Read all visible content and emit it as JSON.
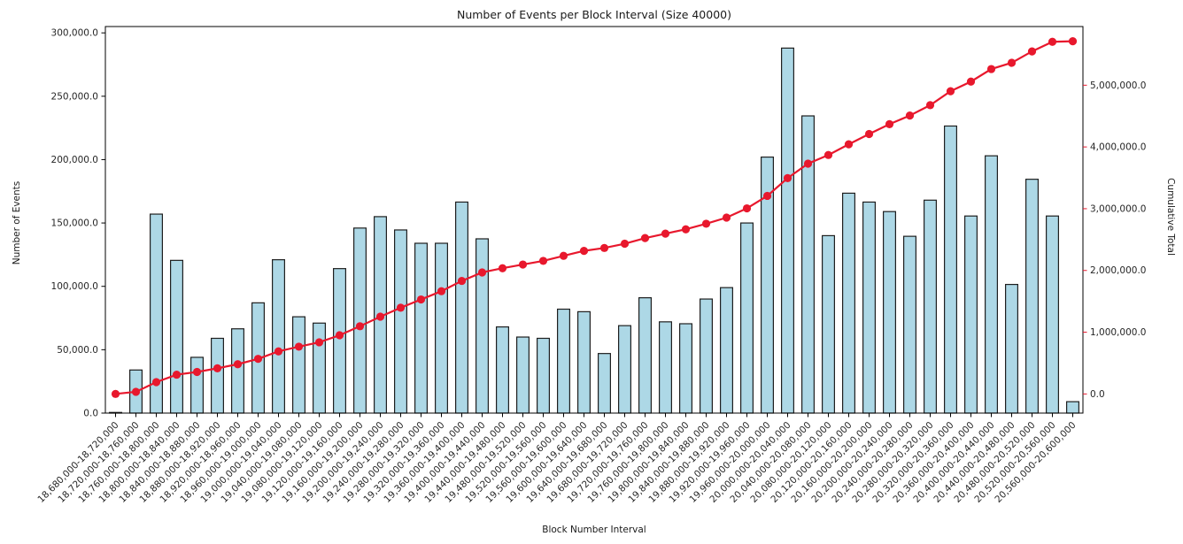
{
  "chart_data": {
    "type": "combo",
    "title": "Number of Events per Block Interval (Size 40000)",
    "xlabel": "Block Number Interval",
    "ylabel_left": "Number of Events",
    "ylabel_right": "Cumulative Total",
    "grid": false,
    "legend": "none",
    "categories": [
      "18,680,000-18,720,000",
      "18,720,000-18,760,000",
      "18,760,000-18,800,000",
      "18,800,000-18,840,000",
      "18,840,000-18,880,000",
      "18,880,000-18,920,000",
      "18,920,000-18,960,000",
      "18,960,000-19,000,000",
      "19,000,000-19,040,000",
      "19,040,000-19,080,000",
      "19,080,000-19,120,000",
      "19,120,000-19,160,000",
      "19,160,000-19,200,000",
      "19,200,000-19,240,000",
      "19,240,000-19,280,000",
      "19,280,000-19,320,000",
      "19,320,000-19,360,000",
      "19,360,000-19,400,000",
      "19,400,000-19,440,000",
      "19,440,000-19,480,000",
      "19,480,000-19,520,000",
      "19,520,000-19,560,000",
      "19,560,000-19,600,000",
      "19,600,000-19,640,000",
      "19,640,000-19,680,000",
      "19,680,000-19,720,000",
      "19,720,000-19,760,000",
      "19,760,000-19,800,000",
      "19,800,000-19,840,000",
      "19,840,000-19,880,000",
      "19,880,000-19,920,000",
      "19,920,000-19,960,000",
      "19,960,000-20,000,000",
      "20,000,000-20,040,000",
      "20,040,000-20,080,000",
      "20,080,000-20,120,000",
      "20,120,000-20,160,000",
      "20,160,000-20,200,000",
      "20,200,000-20,240,000",
      "20,240,000-20,280,000",
      "20,280,000-20,320,000",
      "20,320,000-20,360,000",
      "20,360,000-20,400,000",
      "20,400,000-20,440,000",
      "20,440,000-20,480,000",
      "20,480,000-20,520,000",
      "20,520,000-20,560,000",
      "20,560,000-20,600,000"
    ],
    "series": [
      {
        "name": "Number of Events",
        "type": "bar",
        "axis": "left",
        "values": [
          500,
          34000,
          157000,
          120500,
          44000,
          59000,
          66500,
          87000,
          121000,
          76000,
          71000,
          114000,
          146000,
          155000,
          144500,
          134000,
          134000,
          166500,
          137500,
          68000,
          60000,
          59000,
          82000,
          80000,
          47000,
          69000,
          91000,
          72000,
          70500,
          90000,
          99000,
          150000,
          202000,
          288000,
          234500,
          140000,
          173500,
          166500,
          159000,
          139500,
          168000,
          226500,
          155500,
          203000,
          101500,
          184500,
          155500,
          9000
        ]
      },
      {
        "name": "Cumulative Total",
        "type": "line",
        "axis": "right",
        "marker": "o",
        "values": [
          500,
          34500,
          191500,
          312000,
          356000,
          415000,
          481500,
          568500,
          689500,
          765500,
          836500,
          950500,
          1096500,
          1251500,
          1396000,
          1530000,
          1664000,
          1830500,
          1968000,
          2036000,
          2096000,
          2155000,
          2237000,
          2317000,
          2364000,
          2433000,
          2524000,
          2596000,
          2666500,
          2756500,
          2855500,
          3005500,
          3207500,
          3495500,
          3730000,
          3870000,
          4043500,
          4210000,
          4369000,
          4508500,
          4676500,
          4903000,
          5058500,
          5261500,
          5363000,
          5547500,
          5703000,
          5712000
        ]
      }
    ],
    "y_left": {
      "ticks": [
        0,
        50000,
        100000,
        150000,
        200000,
        250000,
        300000
      ],
      "lim": [
        0,
        305000
      ]
    },
    "y_right": {
      "ticks": [
        0,
        1000000,
        2000000,
        3000000,
        4000000,
        5000000
      ],
      "lim": [
        -310000,
        5950000
      ]
    },
    "colors": {
      "bar_fill": "#ADD8E6",
      "bar_edge": "#1f1f1f",
      "line": "#e8182d",
      "right_axis_text": "#e8182d",
      "axis_text": "#262626",
      "spine": "#000000",
      "background": "#ffffff"
    }
  }
}
